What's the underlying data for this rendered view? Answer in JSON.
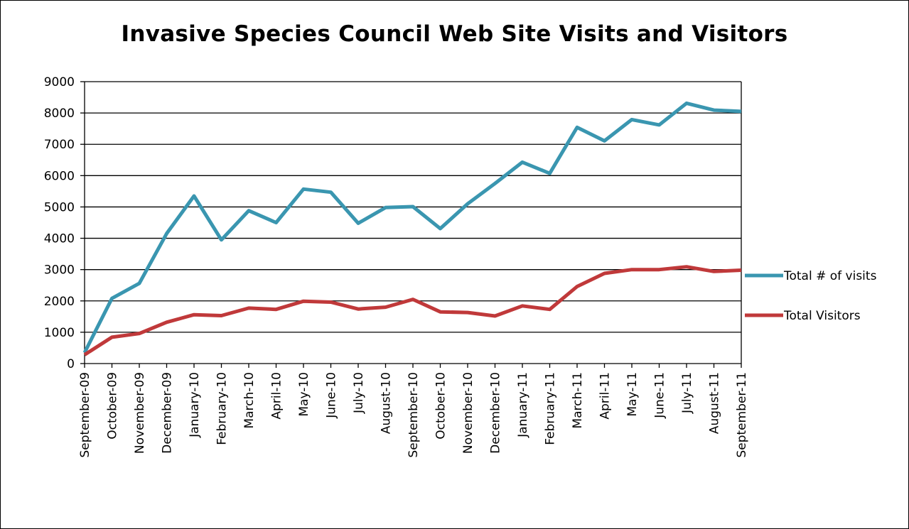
{
  "chart_data": {
    "type": "line",
    "title": "Invasive Species Council Web Site Visits and Visitors",
    "xlabel": "",
    "ylabel": "",
    "ylim": [
      0,
      9000
    ],
    "yticks": [
      "0",
      "1000",
      "2000",
      "3000",
      "4000",
      "5000",
      "6000",
      "7000",
      "8000",
      "9000"
    ],
    "grid": "horizontal",
    "legend_position": "right",
    "categories": [
      "September-09",
      "October-09",
      "November-09",
      "December-09",
      "January-10",
      "February-10",
      "March-10",
      "April-10",
      "May-10",
      "June-10",
      "July-10",
      "August-10",
      "September-10",
      "October-10",
      "November-10",
      "December-10",
      "January-11",
      "February-11",
      "March-11",
      "April-11",
      "May-11",
      "June-11",
      "July-11",
      "August-11",
      "September-11"
    ],
    "series": [
      {
        "name": "Total # of visits",
        "color": "#3a96b0",
        "values": [
          350,
          2080,
          2560,
          4150,
          5350,
          3950,
          4880,
          4500,
          5570,
          5470,
          4480,
          4980,
          5010,
          4310,
          5100,
          5750,
          6430,
          6070,
          7540,
          7110,
          7790,
          7620,
          8310,
          8090,
          8050
        ]
      },
      {
        "name": "Total Visitors",
        "color": "#c0393a",
        "values": [
          280,
          840,
          960,
          1320,
          1560,
          1530,
          1770,
          1730,
          1990,
          1960,
          1740,
          1800,
          2050,
          1650,
          1630,
          1520,
          1840,
          1730,
          2460,
          2880,
          3000,
          3000,
          3090,
          2940,
          2980
        ]
      }
    ]
  }
}
